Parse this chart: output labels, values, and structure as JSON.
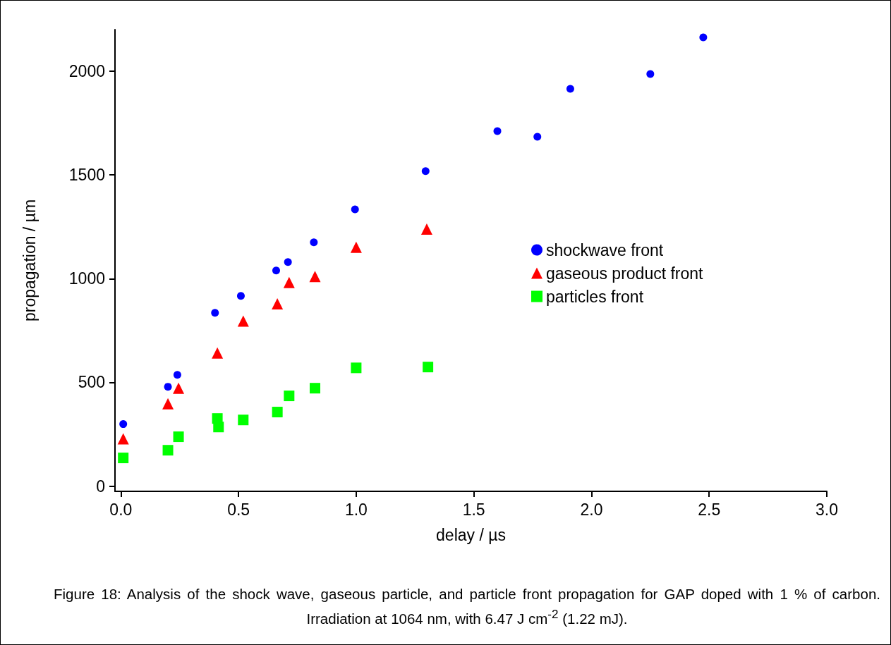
{
  "chart_data": {
    "type": "scatter",
    "xlabel": "delay / µs",
    "ylabel": "propagation / µm",
    "xlim": [
      -0.025,
      3.0
    ],
    "xticks": [
      {
        "value": 0,
        "label": "0.0"
      },
      0.5,
      {
        "value": 1,
        "label": "1.0"
      },
      1.5,
      {
        "value": 2,
        "label": "2.0"
      },
      2.5,
      {
        "value": 3,
        "label": "3.0"
      }
    ],
    "ylim": [
      -25,
      2200
    ],
    "yticks": [
      0,
      500,
      1000,
      1500,
      2000
    ],
    "grid": false,
    "legend": "right",
    "series": [
      {
        "name": "shockwave front",
        "color": "#0000ff",
        "marker": "circle",
        "x": [
          0.01,
          0.2,
          0.24,
          0.4,
          0.51,
          0.66,
          0.71,
          0.82,
          0.995,
          1.295,
          1.6,
          1.77,
          1.91,
          2.25,
          2.475
        ],
        "values": [
          299,
          479,
          536,
          835,
          917,
          1039,
          1080,
          1175,
          1334,
          1518,
          1711,
          1684,
          1915,
          1986,
          2163
        ]
      },
      {
        "name": "gaseous product front",
        "color": "#ff0000",
        "marker": "triangle",
        "x": [
          0.01,
          0.2,
          0.245,
          0.41,
          0.52,
          0.665,
          0.715,
          0.825,
          1.0,
          1.3
        ],
        "values": [
          228,
          397,
          472,
          642,
          795,
          879,
          981,
          1010,
          1151,
          1239
        ]
      },
      {
        "name": "particles front",
        "color": "#00ff00",
        "marker": "square",
        "x": [
          0.01,
          0.2,
          0.245,
          0.41,
          0.415,
          0.52,
          0.665,
          0.715,
          0.825,
          1.0,
          1.305
        ],
        "values": [
          136,
          173,
          238,
          326,
          285,
          319,
          357,
          435,
          472,
          570,
          574
        ]
      }
    ],
    "annotations": [
      "Figure 18: Analysis of the shock wave, gaseous particle, and particle front propagation for GAP doped with 1 % of carbon. Irradiation at 1064 nm, with 6.47 J cm$^{-2}$ (1.22 mJ)."
    ]
  }
}
